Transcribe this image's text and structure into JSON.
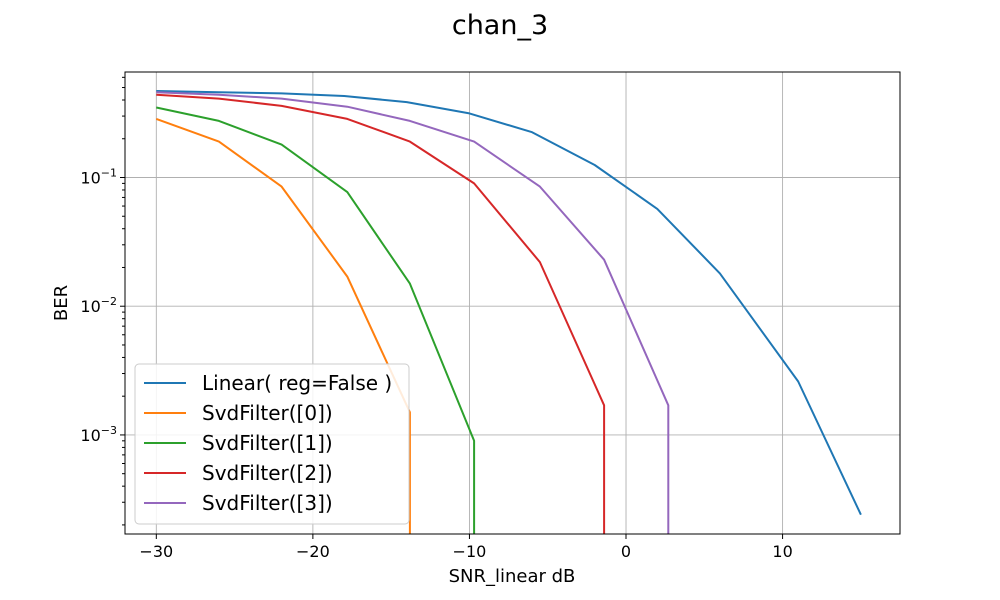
{
  "chart_data": {
    "type": "line",
    "title": "chan_3",
    "xlabel": "SNR_linear dB",
    "ylabel": "BER",
    "yscale": "log",
    "xlim": [
      -32,
      17.5
    ],
    "ylim": [
      0.00017,
      0.66
    ],
    "xticks": [
      -30,
      -20,
      -10,
      0,
      10
    ],
    "xtick_labels": [
      "−30",
      "−20",
      "−10",
      "0",
      "10"
    ],
    "yticks": [
      0.001,
      0.01,
      0.1
    ],
    "ytick_labels": [
      {
        "base": "10",
        "exp": "−3"
      },
      {
        "base": "10",
        "exp": "−2"
      },
      {
        "base": "10",
        "exp": "−1"
      }
    ],
    "grid": true,
    "legend_position": "lower-left",
    "series": [
      {
        "name": "Linear( reg=False )",
        "color": "#1f77b4",
        "x": [
          -30,
          -26,
          -22,
          -18,
          -14,
          -10,
          -6,
          -2,
          2,
          6,
          11,
          15
        ],
        "y": [
          0.47,
          0.46,
          0.45,
          0.43,
          0.385,
          0.315,
          0.225,
          0.125,
          0.057,
          0.018,
          0.0026,
          0.00024
        ]
      },
      {
        "name": "SvdFilter([0])",
        "color": "#ff7f0e",
        "x": [
          -30,
          -26,
          -22,
          -17.8,
          -13.8,
          -13.8
        ],
        "y": [
          0.285,
          0.19,
          0.085,
          0.017,
          0.0015,
          0.00017
        ]
      },
      {
        "name": "SvdFilter([1])",
        "color": "#2ca02c",
        "x": [
          -30,
          -26,
          -22,
          -17.8,
          -13.8,
          -9.7,
          -9.7
        ],
        "y": [
          0.35,
          0.275,
          0.18,
          0.077,
          0.015,
          0.0009,
          0.00017
        ]
      },
      {
        "name": "SvdFilter([2])",
        "color": "#d62728",
        "x": [
          -30,
          -26,
          -22,
          -17.8,
          -13.8,
          -9.7,
          -5.5,
          -1.4,
          -1.4
        ],
        "y": [
          0.44,
          0.41,
          0.36,
          0.285,
          0.19,
          0.09,
          0.022,
          0.0017,
          0.00017
        ]
      },
      {
        "name": "SvdFilter([3])",
        "color": "#9467bd",
        "x": [
          -30,
          -26,
          -22,
          -17.8,
          -13.8,
          -9.7,
          -5.5,
          -1.4,
          2.7,
          2.7
        ],
        "y": [
          0.46,
          0.44,
          0.41,
          0.355,
          0.275,
          0.19,
          0.085,
          0.023,
          0.0017,
          0.00017
        ]
      }
    ]
  }
}
